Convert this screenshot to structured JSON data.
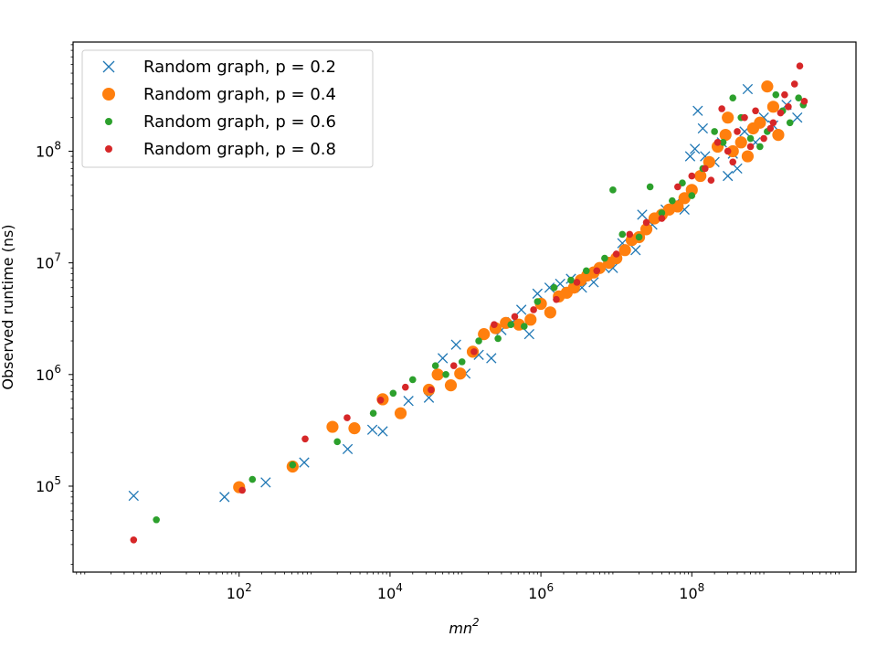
{
  "chart_data": {
    "type": "scatter",
    "title": "",
    "xlabel": "mn",
    "xlabel_sup": "2",
    "ylabel": "Observed runtime (ns)",
    "xscale": "log",
    "yscale": "log",
    "xlim": [
      0.63,
      15000000000.0
    ],
    "ylim": [
      17000,
      950000000.0
    ],
    "x_ticks": [
      {
        "value": 100,
        "base": "10",
        "exp": "2"
      },
      {
        "value": 10000,
        "base": "10",
        "exp": "4"
      },
      {
        "value": 1000000,
        "base": "10",
        "exp": "6"
      },
      {
        "value": 100000000,
        "base": "10",
        "exp": "8"
      }
    ],
    "y_ticks": [
      {
        "value": 100000,
        "base": "10",
        "exp": "5"
      },
      {
        "value": 1000000,
        "base": "10",
        "exp": "6"
      },
      {
        "value": 10000000,
        "base": "10",
        "exp": "7"
      },
      {
        "value": 100000000,
        "base": "10",
        "exp": "8"
      }
    ],
    "grid": false,
    "legend_position": "top-left",
    "series": [
      {
        "name": "Random graph, p = 0.2",
        "marker": "x",
        "color": "#1f77b4",
        "points": [
          [
            4,
            82000
          ],
          [
            64,
            80000
          ],
          [
            225,
            108000
          ],
          [
            729,
            163000
          ],
          [
            2744,
            215000
          ],
          [
            5832,
            320000
          ],
          [
            8000,
            310000
          ],
          [
            17576,
            580000
          ],
          [
            32768,
            620000
          ],
          [
            50000,
            1400000
          ],
          [
            75000,
            1850000
          ],
          [
            100000,
            1020000
          ],
          [
            150000,
            1500000
          ],
          [
            220000,
            1400000
          ],
          [
            300000,
            2500000
          ],
          [
            420000,
            2950000
          ],
          [
            550000,
            3800000
          ],
          [
            700000,
            2300000
          ],
          [
            900000,
            5300000
          ],
          [
            1300000,
            6000000
          ],
          [
            1800000,
            6500000
          ],
          [
            2500000,
            7200000
          ],
          [
            3500000,
            6000000
          ],
          [
            5000000,
            6700000
          ],
          [
            7000000,
            9000000
          ],
          [
            9000000,
            9000000
          ],
          [
            12000000,
            15000000
          ],
          [
            18000000,
            13000000
          ],
          [
            22000000,
            27000000
          ],
          [
            30000000,
            22000000
          ],
          [
            45000000,
            30000000
          ],
          [
            60000000,
            34000000
          ],
          [
            80000000,
            30000000
          ],
          [
            95000000,
            90000000
          ],
          [
            110000000,
            105000000
          ],
          [
            120000000,
            230000000
          ],
          [
            140000000,
            160000000
          ],
          [
            200000000,
            80000000
          ],
          [
            300000000,
            60000000
          ],
          [
            400000000,
            70000000
          ],
          [
            500000000,
            150000000
          ],
          [
            550000000,
            360000000
          ],
          [
            700000000,
            120000000
          ],
          [
            900000000,
            200000000
          ],
          [
            1200000000,
            170000000
          ],
          [
            1800000000,
            260000000
          ],
          [
            2500000000,
            200000000
          ],
          [
            150000000,
            90000000
          ],
          [
            250000000,
            120000000
          ],
          [
            350000000,
            95000000
          ]
        ]
      },
      {
        "name": "Random graph, p = 0.4",
        "marker": "o",
        "color": "#ff7f0e",
        "points": [
          [
            100,
            98000
          ],
          [
            512,
            150000
          ],
          [
            1728,
            340000
          ],
          [
            3375,
            330000
          ],
          [
            8000,
            600000
          ],
          [
            13824,
            450000
          ],
          [
            32768,
            730000
          ],
          [
            42875,
            1000000
          ],
          [
            64000,
            800000
          ],
          [
            85184,
            1020000
          ],
          [
            125000,
            1600000
          ],
          [
            175616,
            2300000
          ],
          [
            250000,
            2600000
          ],
          [
            343000,
            2900000
          ],
          [
            512000,
            2800000
          ],
          [
            729000,
            3100000
          ],
          [
            1000000,
            4300000
          ],
          [
            1331000,
            3600000
          ],
          [
            1728000,
            5000000
          ],
          [
            2197000,
            5400000
          ],
          [
            2744000,
            6000000
          ],
          [
            3375000,
            7000000
          ],
          [
            4096000,
            7700000
          ],
          [
            5000000,
            8200000
          ],
          [
            6000000,
            9000000
          ],
          [
            8000000,
            10000000
          ],
          [
            10000000,
            11000000
          ],
          [
            13000000,
            13000000
          ],
          [
            16000000,
            16000000
          ],
          [
            20000000,
            17000000
          ],
          [
            25000000,
            20000000
          ],
          [
            32000000,
            25000000
          ],
          [
            40000000,
            27000000
          ],
          [
            50000000,
            30000000
          ],
          [
            65000000,
            32000000
          ],
          [
            80000000,
            38000000
          ],
          [
            100000000,
            45000000
          ],
          [
            130000000,
            60000000
          ],
          [
            170000000,
            80000000
          ],
          [
            220000000,
            110000000
          ],
          [
            280000000,
            140000000
          ],
          [
            350000000,
            100000000
          ],
          [
            450000000,
            120000000
          ],
          [
            550000000,
            90000000
          ],
          [
            650000000,
            160000000
          ],
          [
            800000000,
            180000000
          ],
          [
            1000000000,
            380000000
          ],
          [
            1200000000,
            250000000
          ],
          [
            1400000000,
            140000000
          ],
          [
            300000000,
            200000000
          ]
        ]
      },
      {
        "name": "Random graph, p = 0.6",
        "marker": ".",
        "color": "#2ca02c",
        "points": [
          [
            8,
            50000
          ],
          [
            150,
            115000
          ],
          [
            512,
            155000
          ],
          [
            2000,
            250000
          ],
          [
            6000,
            450000
          ],
          [
            11000,
            680000
          ],
          [
            20000,
            900000
          ],
          [
            40000,
            1200000
          ],
          [
            55000,
            1000000
          ],
          [
            90000,
            1300000
          ],
          [
            150000,
            2000000
          ],
          [
            270000,
            2100000
          ],
          [
            400000,
            2800000
          ],
          [
            600000,
            2700000
          ],
          [
            900000,
            4500000
          ],
          [
            1500000,
            6000000
          ],
          [
            2500000,
            7000000
          ],
          [
            4000000,
            8500000
          ],
          [
            7000000,
            11000000
          ],
          [
            9000000,
            45000000
          ],
          [
            12000000,
            18000000
          ],
          [
            20000000,
            17000000
          ],
          [
            28000000,
            48000000
          ],
          [
            40000000,
            28000000
          ],
          [
            55000000,
            36000000
          ],
          [
            75000000,
            52000000
          ],
          [
            100000000,
            40000000
          ],
          [
            140000000,
            70000000
          ],
          [
            200000000,
            150000000
          ],
          [
            260000000,
            120000000
          ],
          [
            350000000,
            300000000
          ],
          [
            450000000,
            200000000
          ],
          [
            600000000,
            130000000
          ],
          [
            800000000,
            110000000
          ],
          [
            1000000000,
            150000000
          ],
          [
            1300000000,
            320000000
          ],
          [
            1600000000,
            230000000
          ],
          [
            2000000000,
            180000000
          ],
          [
            2600000000,
            300000000
          ],
          [
            3000000000,
            260000000
          ]
        ]
      },
      {
        "name": "Random graph, p = 0.8",
        "marker": ".",
        "color": "#d62728",
        "points": [
          [
            4,
            33000
          ],
          [
            110,
            92000
          ],
          [
            750,
            265000
          ],
          [
            2700,
            410000
          ],
          [
            7500,
            590000
          ],
          [
            16000,
            770000
          ],
          [
            35000,
            730000
          ],
          [
            70000,
            1200000
          ],
          [
            130000,
            1600000
          ],
          [
            240000,
            2800000
          ],
          [
            450000,
            3300000
          ],
          [
            800000,
            3800000
          ],
          [
            1600000,
            4700000
          ],
          [
            3000000,
            6700000
          ],
          [
            5500000,
            8500000
          ],
          [
            10000000,
            12000000
          ],
          [
            15000000,
            18000000
          ],
          [
            25000000,
            23000000
          ],
          [
            40000000,
            25000000
          ],
          [
            65000000,
            48000000
          ],
          [
            100000000,
            60000000
          ],
          [
            150000000,
            70000000
          ],
          [
            220000000,
            120000000
          ],
          [
            300000000,
            100000000
          ],
          [
            400000000,
            150000000
          ],
          [
            500000000,
            200000000
          ],
          [
            700000000,
            230000000
          ],
          [
            900000000,
            130000000
          ],
          [
            1200000000,
            180000000
          ],
          [
            1500000000,
            220000000
          ],
          [
            1900000000,
            250000000
          ],
          [
            2300000000,
            400000000
          ],
          [
            2700000000,
            580000000
          ],
          [
            3100000000,
            280000000
          ],
          [
            250000000,
            240000000
          ],
          [
            180000000,
            55000000
          ],
          [
            350000000,
            80000000
          ],
          [
            600000000,
            110000000
          ],
          [
            1100000000,
            160000000
          ],
          [
            1700000000,
            320000000
          ]
        ]
      }
    ]
  }
}
